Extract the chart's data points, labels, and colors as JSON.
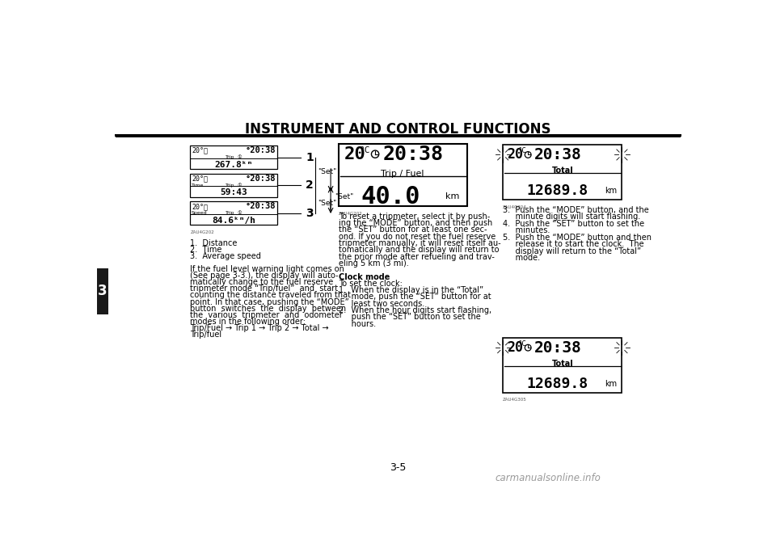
{
  "title": "INSTRUMENT AND CONTROL FUNCTIONS",
  "page_num": "3-5",
  "bg_color": "#ffffff",
  "body_text": [
    "1.  Distance",
    "2.  Time",
    "3.  Average speed",
    "",
    "If the fuel level warning light comes on",
    "(See page 3-3.), the display will auto-",
    "matically change to the fuel reserve",
    "tripmeter mode “Trip/fuel”  and  start",
    "counting the distance traveled from that",
    "point. In that case, pushing the “MODE”",
    "button  switches  the  display  between",
    "the  various  tripmeter  and  odometer",
    "modes in the following order:",
    "Trip/Fuel → Trip 1 → Trip 2 → Total →",
    "Trip/fuel"
  ],
  "mid_text": [
    "To reset a tripmeter, select it by push-",
    "ing the “MODE” button, and then push",
    "the “SET” button for at least one sec-",
    "ond. If you do not reset the fuel reserve",
    "tripmeter manually, it will reset itself au-",
    "tomatically and the display will return to",
    "the prior mode after refueling and trav-",
    "eling 5 km (3 mi).",
    "",
    "Clock mode",
    "To set the clock:",
    "1.  When the display is in the “Total”",
    "     mode, push the “SET” button for at",
    "     least two seconds.",
    "2.  When the hour digits start flashing,",
    "     push the “SET” button to set the",
    "     hours."
  ],
  "right_text": [
    "3.  Push the “MODE” button, and the",
    "     minute digits will start flashing.",
    "4.  Push the “SET” button to set the",
    "     minutes.",
    "5.  Push the “MODE” button and then",
    "     release it to start the clock.  The",
    "     display will return to the “Total”",
    "     mode."
  ]
}
